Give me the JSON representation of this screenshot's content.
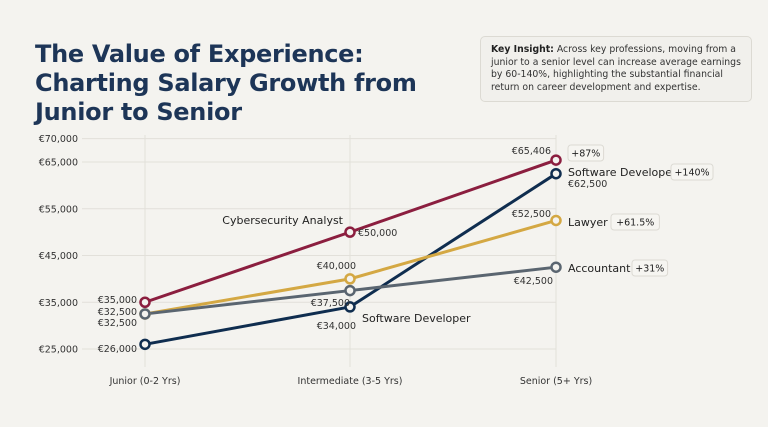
{
  "title": "The Value of Experience: Charting Salary Growth from Junior to Senior",
  "insight": {
    "label": "Key Insight:",
    "text": " Across key professions, moving from a junior to a senior level can increase average earnings by 60-140%, highlighting the substantial financial return on career development and expertise."
  },
  "chart_data": {
    "type": "line",
    "categories": [
      "Junior (0-2 Yrs)",
      "Intermediate (3-5 Yrs)",
      "Senior (5+ Yrs)"
    ],
    "y_ticks": [
      25000,
      35000,
      45000,
      55000,
      65000,
      70000
    ],
    "y_tick_labels": [
      "€25,000",
      "€35,000",
      "€45,000",
      "€55,000",
      "€65,000",
      "€70,000"
    ],
    "ylim": [
      25000,
      70000
    ],
    "grid": true,
    "series": [
      {
        "name": "Cybersecurity Analyst",
        "color": "#8b1e3f",
        "values": [
          35000,
          50000,
          65406
        ],
        "data_labels": [
          "€35,000",
          "€50,000",
          "€65,406"
        ],
        "growth": "+87%"
      },
      {
        "name": "Software Developer",
        "color": "#0f2d4f",
        "values": [
          26000,
          34000,
          62500
        ],
        "data_labels": [
          "€26,000",
          "€34,000",
          "€62,500"
        ],
        "growth": "+140%"
      },
      {
        "name": "Lawyer",
        "color": "#d4a843",
        "values": [
          32500,
          40000,
          52500
        ],
        "data_labels": [
          "€32,500",
          "€40,000",
          "€52,500"
        ],
        "growth": "+61.5%"
      },
      {
        "name": "Accountant",
        "color": "#5a6570",
        "values": [
          32500,
          37500,
          42500
        ],
        "data_labels": [
          "€32,500",
          "€37,500",
          "€42,500"
        ],
        "growth": "+31%"
      }
    ]
  }
}
